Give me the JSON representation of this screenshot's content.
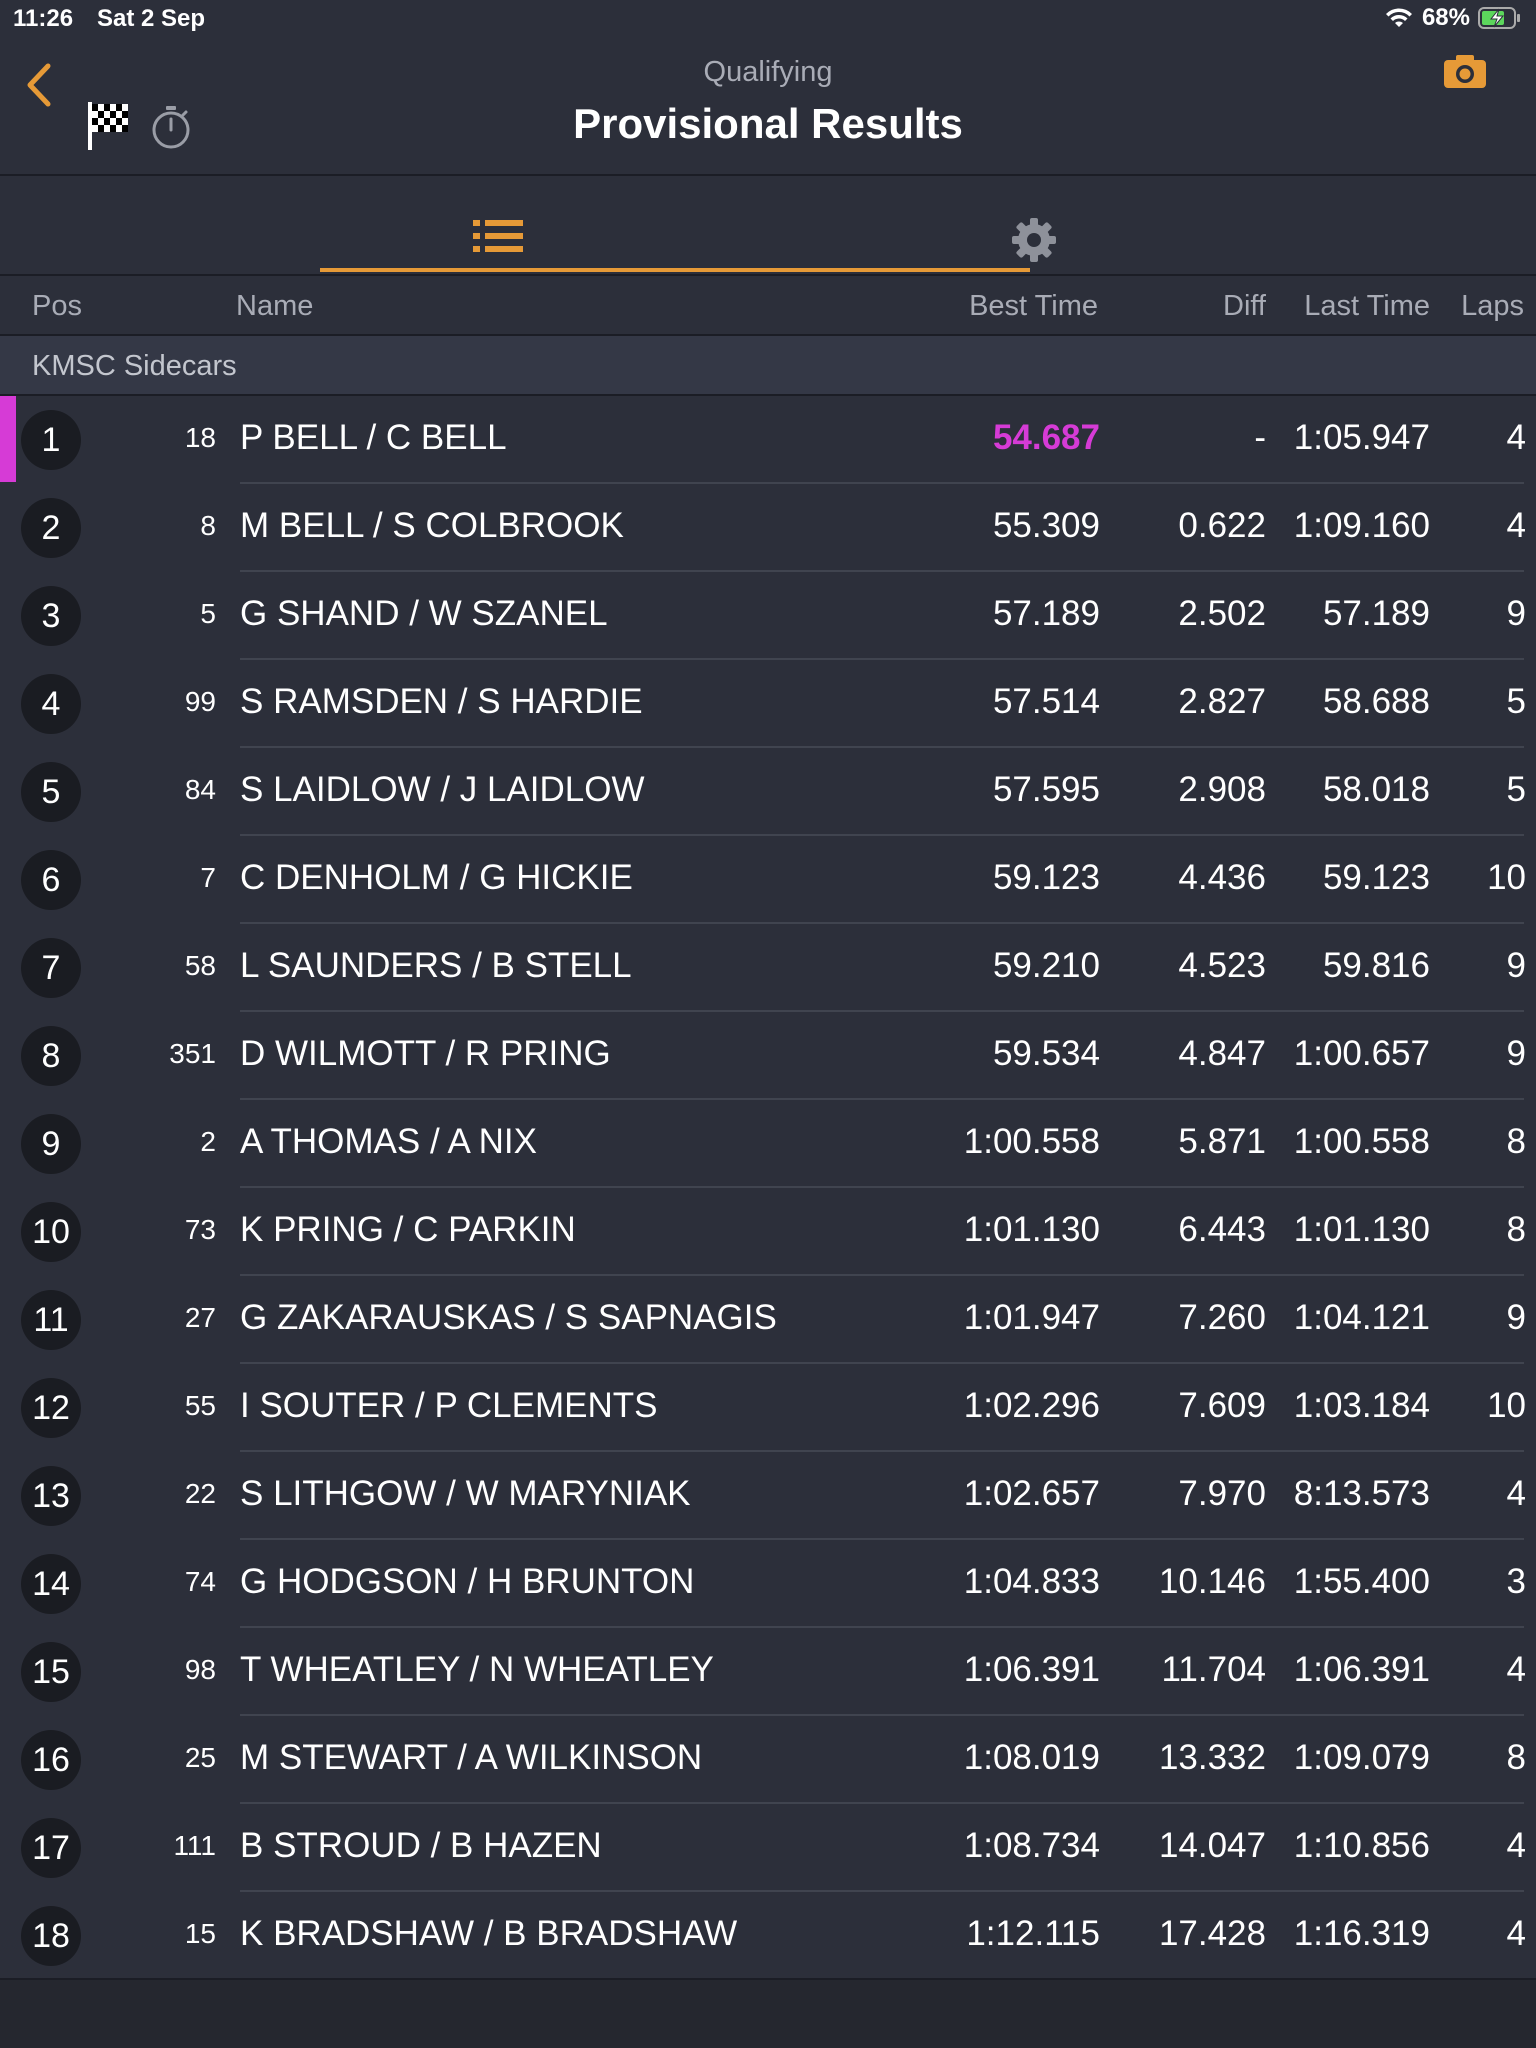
{
  "status_bar": {
    "time": "11:26",
    "date": "Sat 2 Sep",
    "battery": "68%"
  },
  "header": {
    "subtitle": "Qualifying",
    "title": "Provisional Results"
  },
  "columns": {
    "pos": "Pos",
    "name": "Name",
    "best": "Best Time",
    "diff": "Diff",
    "last": "Last Time",
    "laps": "Laps"
  },
  "class_name": "KMSC Sidecars",
  "colors": {
    "accent": "#e69a37",
    "fastest": "#d63bd6",
    "background": "#2c2f3a"
  },
  "results": [
    {
      "pos": "1",
      "num": "18",
      "name": "P BELL / C BELL",
      "best": "54.687",
      "diff": "-",
      "last": "1:05.947",
      "laps": "4",
      "fastest": true
    },
    {
      "pos": "2",
      "num": "8",
      "name": "M BELL / S COLBROOK",
      "best": "55.309",
      "diff": "0.622",
      "last": "1:09.160",
      "laps": "4"
    },
    {
      "pos": "3",
      "num": "5",
      "name": "G SHAND / W SZANEL",
      "best": "57.189",
      "diff": "2.502",
      "last": "57.189",
      "laps": "9"
    },
    {
      "pos": "4",
      "num": "99",
      "name": "S RAMSDEN / S HARDIE",
      "best": "57.514",
      "diff": "2.827",
      "last": "58.688",
      "laps": "5"
    },
    {
      "pos": "5",
      "num": "84",
      "name": "S LAIDLOW / J LAIDLOW",
      "best": "57.595",
      "diff": "2.908",
      "last": "58.018",
      "laps": "5"
    },
    {
      "pos": "6",
      "num": "7",
      "name": "C DENHOLM / G HICKIE",
      "best": "59.123",
      "diff": "4.436",
      "last": "59.123",
      "laps": "10"
    },
    {
      "pos": "7",
      "num": "58",
      "name": "L SAUNDERS / B STELL",
      "best": "59.210",
      "diff": "4.523",
      "last": "59.816",
      "laps": "9"
    },
    {
      "pos": "8",
      "num": "351",
      "name": "D WILMOTT / R PRING",
      "best": "59.534",
      "diff": "4.847",
      "last": "1:00.657",
      "laps": "9"
    },
    {
      "pos": "9",
      "num": "2",
      "name": "A THOMAS / A NIX",
      "best": "1:00.558",
      "diff": "5.871",
      "last": "1:00.558",
      "laps": "8"
    },
    {
      "pos": "10",
      "num": "73",
      "name": "K PRING / C PARKIN",
      "best": "1:01.130",
      "diff": "6.443",
      "last": "1:01.130",
      "laps": "8"
    },
    {
      "pos": "11",
      "num": "27",
      "name": "G ZAKARAUSKAS / S SAPNAGIS",
      "best": "1:01.947",
      "diff": "7.260",
      "last": "1:04.121",
      "laps": "9"
    },
    {
      "pos": "12",
      "num": "55",
      "name": "I SOUTER / P CLEMENTS",
      "best": "1:02.296",
      "diff": "7.609",
      "last": "1:03.184",
      "laps": "10"
    },
    {
      "pos": "13",
      "num": "22",
      "name": "S LITHGOW / W MARYNIAK",
      "best": "1:02.657",
      "diff": "7.970",
      "last": "8:13.573",
      "laps": "4"
    },
    {
      "pos": "14",
      "num": "74",
      "name": "G HODGSON / H BRUNTON",
      "best": "1:04.833",
      "diff": "10.146",
      "last": "1:55.400",
      "laps": "3"
    },
    {
      "pos": "15",
      "num": "98",
      "name": "T WHEATLEY / N WHEATLEY",
      "best": "1:06.391",
      "diff": "11.704",
      "last": "1:06.391",
      "laps": "4"
    },
    {
      "pos": "16",
      "num": "25",
      "name": "M STEWART / A WILKINSON",
      "best": "1:08.019",
      "diff": "13.332",
      "last": "1:09.079",
      "laps": "8"
    },
    {
      "pos": "17",
      "num": "111",
      "name": "B STROUD / B HAZEN",
      "best": "1:08.734",
      "diff": "14.047",
      "last": "1:10.856",
      "laps": "4"
    },
    {
      "pos": "18",
      "num": "15",
      "name": "K BRADSHAW / B BRADSHAW",
      "best": "1:12.115",
      "diff": "17.428",
      "last": "1:16.319",
      "laps": "4"
    }
  ]
}
